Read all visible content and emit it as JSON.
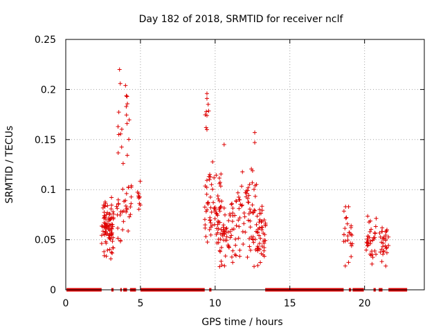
{
  "chart_data": {
    "type": "scatter",
    "title": "Day 182 of 2018, SRMTID for receiver nclf",
    "xlabel": "GPS time / hours",
    "ylabel": "SRMTID / TECUs",
    "xlim": [
      0,
      24
    ],
    "ylim": [
      0,
      0.25
    ],
    "x_ticks": [
      0,
      5,
      10,
      15,
      20
    ],
    "y_ticks": [
      0,
      0.05,
      0.1,
      0.15,
      0.2,
      0.25
    ],
    "x_tick_labels": [
      "0",
      "5",
      "10",
      "15",
      "20"
    ],
    "y_tick_labels": [
      "0",
      "0.05",
      "0.1",
      "0.15",
      "0.2",
      "0.25"
    ],
    "grid": true,
    "marker": "+",
    "color": "#dd0000",
    "clusters": [
      {
        "x": [
          2.4,
          3.2
        ],
        "y": [
          0.025,
          0.1
        ],
        "n": 90
      },
      {
        "x": [
          3.4,
          4.4
        ],
        "y": [
          0.04,
          0.12
        ],
        "n": 35
      },
      {
        "x": [
          3.5,
          4.3
        ],
        "y": [
          0.12,
          0.22
        ],
        "n": 12
      },
      {
        "x": [
          4.8,
          5.0
        ],
        "y": [
          0.065,
          0.11
        ],
        "n": 10
      },
      {
        "x": [
          9.3,
          10.4
        ],
        "y": [
          0.03,
          0.13
        ],
        "n": 70
      },
      {
        "x": [
          9.3,
          9.6
        ],
        "y": [
          0.14,
          0.2
        ],
        "n": 5
      },
      {
        "x": [
          10.3,
          11.5
        ],
        "y": [
          0.02,
          0.1
        ],
        "n": 60
      },
      {
        "x": [
          11.5,
          12.8
        ],
        "y": [
          0.02,
          0.13
        ],
        "n": 65
      },
      {
        "x": [
          12.8,
          13.4
        ],
        "y": [
          0.02,
          0.09
        ],
        "n": 45
      },
      {
        "x": [
          18.6,
          19.2
        ],
        "y": [
          0.02,
          0.095
        ],
        "n": 25
      },
      {
        "x": [
          20.1,
          20.8
        ],
        "y": [
          0.02,
          0.08
        ],
        "n": 35
      },
      {
        "x": [
          21.0,
          21.6
        ],
        "y": [
          0.02,
          0.07
        ],
        "n": 30
      }
    ],
    "highlight_points": [
      {
        "x": 3.6,
        "y": 0.22
      },
      {
        "x": 3.65,
        "y": 0.206
      },
      {
        "x": 4.0,
        "y": 0.204
      },
      {
        "x": 4.1,
        "y": 0.193
      },
      {
        "x": 4.05,
        "y": 0.183
      },
      {
        "x": 4.1,
        "y": 0.166
      },
      {
        "x": 3.5,
        "y": 0.163
      },
      {
        "x": 3.55,
        "y": 0.155
      },
      {
        "x": 9.45,
        "y": 0.196
      },
      {
        "x": 9.45,
        "y": 0.191
      },
      {
        "x": 9.45,
        "y": 0.174
      },
      {
        "x": 9.45,
        "y": 0.16
      },
      {
        "x": 10.6,
        "y": 0.145
      },
      {
        "x": 12.65,
        "y": 0.157
      },
      {
        "x": 12.65,
        "y": 0.147
      }
    ],
    "zero_segments": [
      [
        0.05,
        2.4
      ],
      [
        3.05,
        3.2
      ],
      [
        3.65,
        3.75
      ],
      [
        3.85,
        4.1
      ],
      [
        4.3,
        4.7
      ],
      [
        5.0,
        9.3
      ],
      [
        9.6,
        9.75
      ],
      [
        13.35,
        18.6
      ],
      [
        18.95,
        19.1
      ],
      [
        19.2,
        19.95
      ],
      [
        20.6,
        20.75
      ],
      [
        20.95,
        21.2
      ],
      [
        21.6,
        22.85
      ]
    ]
  }
}
